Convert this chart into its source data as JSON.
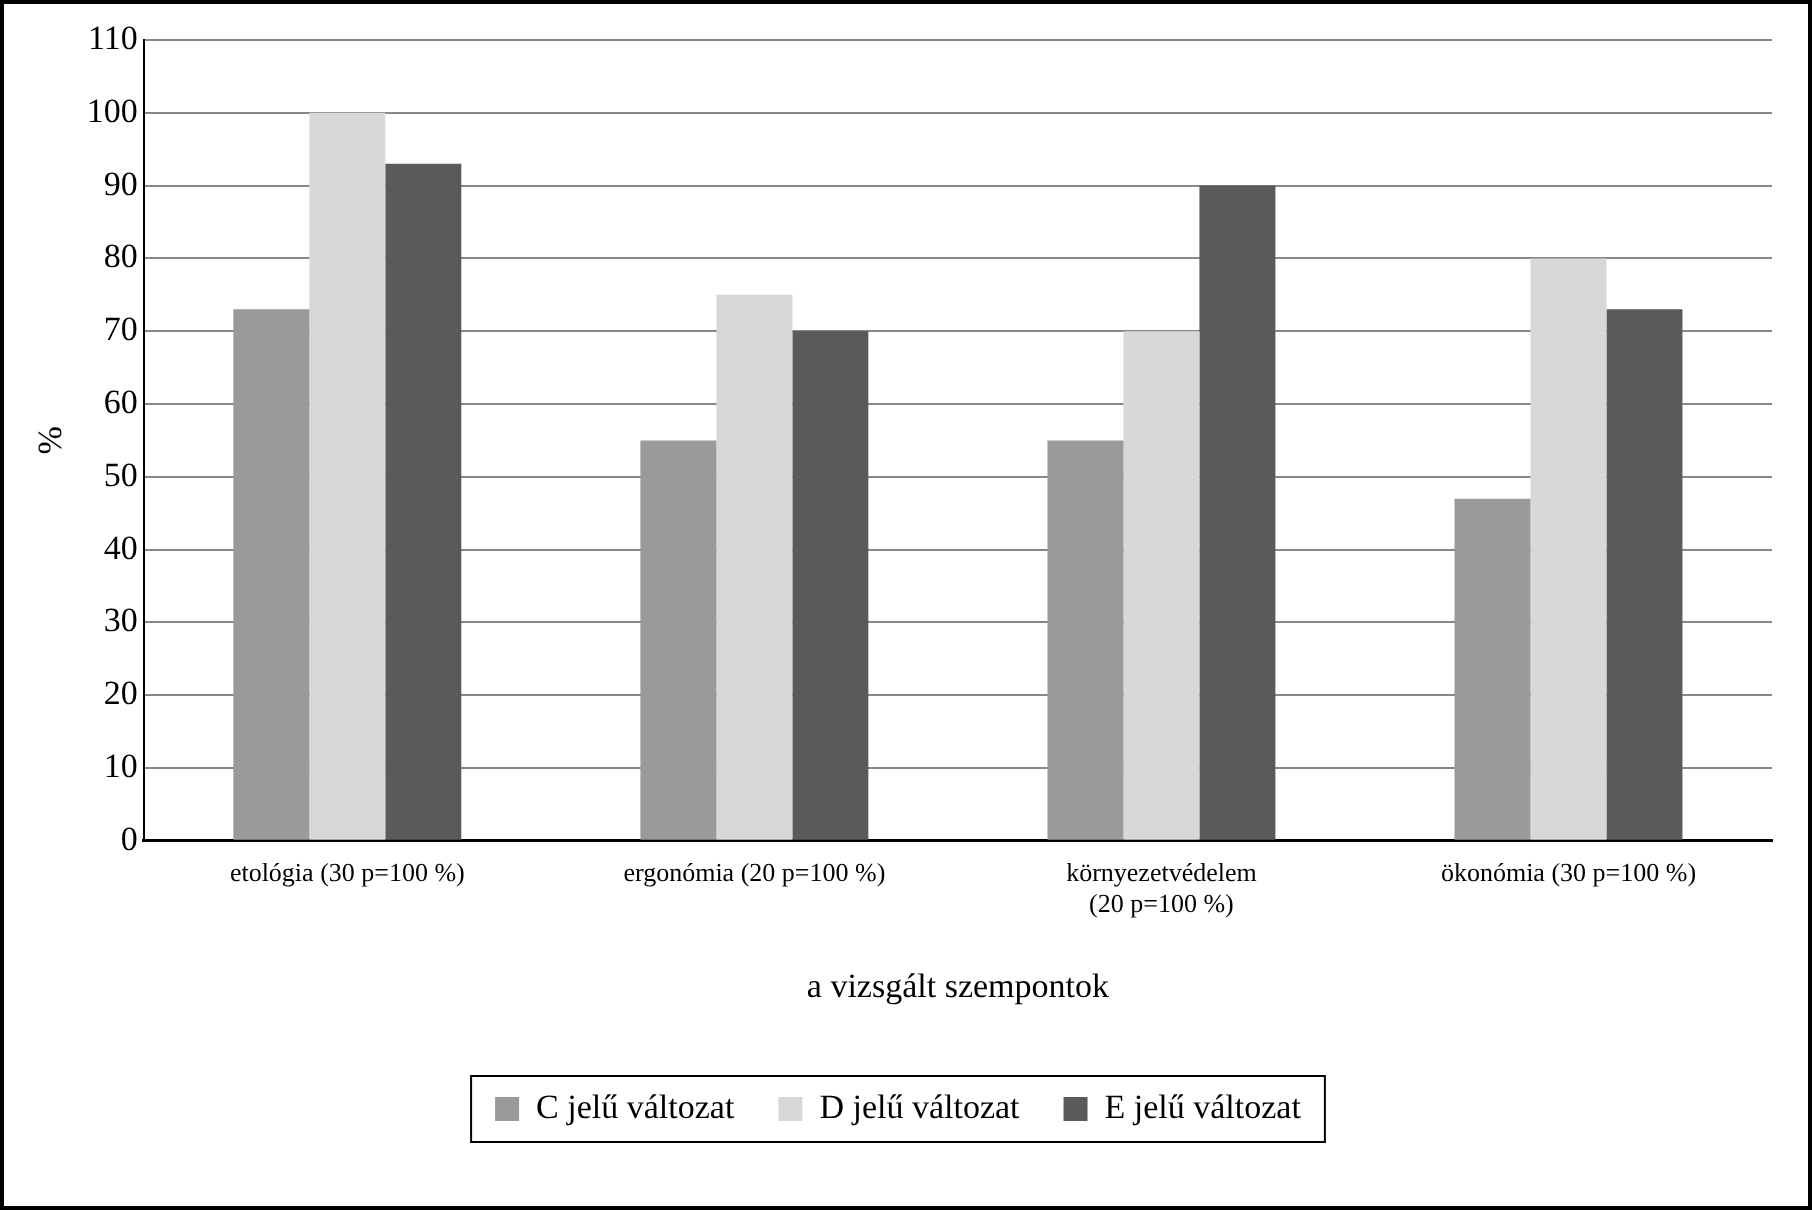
{
  "chart_data": {
    "type": "bar",
    "xlabel": "a vizsgált szempontok",
    "ylabel": "%",
    "categories": [
      "etológia (30 p=100 %)",
      "ergonómia (20 p=100 %)",
      "környezetvédelem (20 p=100 %)",
      "ökonómia (30 p=100 %)"
    ],
    "series": [
      {
        "name": "C jelű változat",
        "color": "#9a9a9a",
        "values": [
          73,
          55,
          55,
          47
        ]
      },
      {
        "name": "D jelű változat",
        "color": "#d8d8d8",
        "values": [
          100,
          75,
          70,
          80
        ]
      },
      {
        "name": "E jelű változat",
        "color": "#5a5a5a",
        "values": [
          93,
          70,
          90,
          73
        ]
      }
    ],
    "ylim": [
      0,
      110
    ],
    "yticks": [
      0,
      10,
      20,
      30,
      40,
      50,
      60,
      70,
      80,
      90,
      100,
      110
    ],
    "grid": "y",
    "legend": "bottom"
  }
}
